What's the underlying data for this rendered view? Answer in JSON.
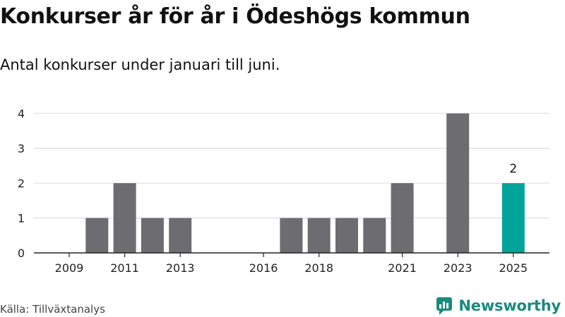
{
  "header": {
    "title": "Konkurser år för år i Ödeshögs kommun",
    "subtitle": "Antal konkurser under januari till juni."
  },
  "footer": {
    "source": "Källa: Tillväxtanalys",
    "brand": "Newsworthy"
  },
  "colors": {
    "bar": "#6d6c71",
    "highlight": "#00a49a",
    "grid": "#d9d9d9",
    "axis": "#222222",
    "brand": "#1a8a7e"
  },
  "chart_data": {
    "type": "bar",
    "title": "",
    "xlabel": "",
    "ylabel": "",
    "categories": [
      "2009",
      "2010",
      "2011",
      "2012",
      "2013",
      "2014",
      "2015",
      "2016",
      "2017",
      "2018",
      "2019",
      "2020",
      "2021",
      "2022",
      "2023",
      "2024",
      "2025"
    ],
    "values": [
      0,
      1,
      2,
      1,
      1,
      0,
      0,
      0,
      1,
      1,
      1,
      1,
      2,
      0,
      4,
      0,
      2
    ],
    "x_tick_labels": [
      "2009",
      "2011",
      "2013",
      "2016",
      "2018",
      "2021",
      "2023",
      "2025"
    ],
    "y_ticks": [
      0,
      1,
      2,
      3,
      4
    ],
    "ylim": [
      0,
      4
    ],
    "highlight_category": "2025",
    "value_labels": {
      "2025": "2"
    },
    "grid": true,
    "legend": "none"
  }
}
